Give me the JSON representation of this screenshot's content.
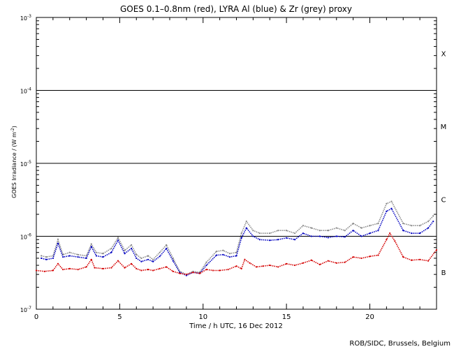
{
  "chart_data": {
    "type": "scatter",
    "title": "GOES 0.1–0.8nm (red), LYRA Al (blue) & Zr (grey) proxy",
    "xlabel": "Time / h UTC, 16 Dec 2012",
    "ylabel_main": "GOES Irradiance / (W m",
    "ylabel_exp": "-2",
    "ylabel_close": ")",
    "xlim": [
      0,
      24
    ],
    "ylim": [
      1e-07,
      0.001
    ],
    "yscale": "log",
    "x_ticks": [
      0,
      5,
      10,
      15,
      20
    ],
    "x_tick_labels": [
      "0",
      "5",
      "10",
      "15",
      "20"
    ],
    "y_ticks": [
      1e-07,
      1e-06,
      1e-05,
      0.0001,
      0.001
    ],
    "y_tick_labels": [
      {
        "base": "10",
        "exp": "-7"
      },
      {
        "base": "10",
        "exp": "-6"
      },
      {
        "base": "10",
        "exp": "-5"
      },
      {
        "base": "10",
        "exp": "-4"
      },
      {
        "base": "10",
        "exp": "-3"
      }
    ],
    "threshold_lines": [
      1e-06,
      1e-05,
      0.0001
    ],
    "flare_classes": [
      {
        "label": "X",
        "y": 0.00032
      },
      {
        "label": "M",
        "y": 3.2e-05
      },
      {
        "label": "C",
        "y": 3.2e-06
      },
      {
        "label": "B",
        "y": 3.2e-07
      }
    ],
    "credit": "ROB/SIDC, Brussels, Belgium",
    "series": [
      {
        "color": "#d40000",
        "x": [
          0,
          0.5,
          1,
          1.3,
          1.6,
          2,
          2.5,
          3,
          3.3,
          3.5,
          4,
          4.5,
          4.9,
          5.3,
          5.7,
          6,
          6.3,
          6.7,
          7,
          7.4,
          7.8,
          8.2,
          8.6,
          9,
          9.4,
          9.8,
          10.2,
          10.6,
          11,
          11.5,
          12,
          12.3,
          12.5,
          12.8,
          13.2,
          13.6,
          14,
          14.5,
          15,
          15.5,
          16,
          16.5,
          17,
          17.5,
          18,
          18.5,
          19,
          19.5,
          20,
          20.5,
          21,
          21.2,
          21.5,
          22,
          22.5,
          23,
          23.5,
          24
        ],
        "y": [
          3.4e-07,
          3.3e-07,
          3.4e-07,
          4.2e-07,
          3.5e-07,
          3.6e-07,
          3.5e-07,
          3.8e-07,
          4.8e-07,
          3.7e-07,
          3.6e-07,
          3.7e-07,
          4.6e-07,
          3.7e-07,
          4.2e-07,
          3.6e-07,
          3.4e-07,
          3.5e-07,
          3.4e-07,
          3.6e-07,
          3.8e-07,
          3.3e-07,
          3.1e-07,
          3e-07,
          3.2e-07,
          3.1e-07,
          3.5e-07,
          3.4e-07,
          3.4e-07,
          3.5e-07,
          3.9e-07,
          3.6e-07,
          4.8e-07,
          4.3e-07,
          3.8e-07,
          3.9e-07,
          4e-07,
          3.8e-07,
          4.2e-07,
          4e-07,
          4.3e-07,
          4.7e-07,
          4.1e-07,
          4.6e-07,
          4.3e-07,
          4.4e-07,
          5.2e-07,
          5e-07,
          5.3e-07,
          5.5e-07,
          9e-07,
          1.1e-06,
          8.6e-07,
          5.2e-07,
          4.7e-07,
          4.8e-07,
          4.6e-07,
          6.5e-07
        ]
      },
      {
        "color": "#0000c0",
        "x": [
          0.3,
          0.6,
          1,
          1.3,
          1.6,
          2,
          2.5,
          3,
          3.3,
          3.6,
          4,
          4.5,
          4.9,
          5.3,
          5.7,
          6,
          6.3,
          6.7,
          7,
          7.4,
          7.8,
          8.2,
          8.6,
          9,
          9.4,
          9.8,
          10.2,
          10.8,
          11.2,
          11.6,
          12,
          12.3,
          12.6,
          13,
          13.4,
          14,
          14.5,
          15,
          15.5,
          16,
          16.5,
          17,
          17.5,
          18,
          18.5,
          19,
          19.5,
          20,
          20.5,
          21,
          21.3,
          22,
          22.5,
          23,
          23.5,
          23.8
        ],
        "y": [
          5e-07,
          4.8e-07,
          5e-07,
          8e-07,
          5.2e-07,
          5.4e-07,
          5.2e-07,
          5e-07,
          7.2e-07,
          5.4e-07,
          5.2e-07,
          6e-07,
          8.8e-07,
          5.8e-07,
          6.8e-07,
          5e-07,
          4.5e-07,
          4.8e-07,
          4.5e-07,
          5.3e-07,
          6.8e-07,
          4.6e-07,
          3.2e-07,
          2.9e-07,
          3.2e-07,
          3.1e-07,
          4e-07,
          5.5e-07,
          5.6e-07,
          5.2e-07,
          5.4e-07,
          9.5e-07,
          1.3e-06,
          1e-06,
          9e-07,
          8.8e-07,
          9e-07,
          9.5e-07,
          9e-07,
          1.1e-06,
          1e-06,
          1e-06,
          9.6e-07,
          1e-06,
          9.8e-07,
          1.2e-06,
          1e-06,
          1.1e-06,
          1.2e-06,
          2.2e-06,
          2.4e-06,
          1.2e-06,
          1.1e-06,
          1.1e-06,
          1.3e-06,
          1.6e-06
        ]
      },
      {
        "color": "#888888",
        "x": [
          0.3,
          0.6,
          1,
          1.3,
          1.6,
          2,
          2.5,
          3,
          3.3,
          3.6,
          4,
          4.5,
          4.9,
          5.3,
          5.7,
          6,
          6.3,
          6.7,
          7,
          7.4,
          7.8,
          8.2,
          8.6,
          9,
          9.4,
          9.8,
          10.2,
          10.8,
          11.2,
          11.6,
          12,
          12.3,
          12.6,
          13,
          13.4,
          14,
          14.5,
          15,
          15.5,
          16,
          16.5,
          17,
          17.5,
          18,
          18.5,
          19,
          19.5,
          20,
          20.5,
          21,
          21.3,
          22,
          22.5,
          23,
          23.5,
          23.8
        ],
        "y": [
          5.4e-07,
          5.2e-07,
          5.4e-07,
          9e-07,
          5.6e-07,
          6e-07,
          5.6e-07,
          5.4e-07,
          7.8e-07,
          6e-07,
          5.8e-07,
          6.8e-07,
          9.6e-07,
          6.4e-07,
          7.6e-07,
          5.6e-07,
          5e-07,
          5.4e-07,
          4.8e-07,
          6e-07,
          7.6e-07,
          5e-07,
          3.3e-07,
          3e-07,
          3.3e-07,
          3.2e-07,
          4.4e-07,
          6.2e-07,
          6.4e-07,
          5.8e-07,
          6e-07,
          1.1e-06,
          1.6e-06,
          1.2e-06,
          1.1e-06,
          1.1e-06,
          1.2e-06,
          1.2e-06,
          1.1e-06,
          1.4e-06,
          1.3e-06,
          1.2e-06,
          1.2e-06,
          1.3e-06,
          1.2e-06,
          1.5e-06,
          1.3e-06,
          1.4e-06,
          1.5e-06,
          2.8e-06,
          3e-06,
          1.5e-06,
          1.4e-06,
          1.4e-06,
          1.6e-06,
          1.9e-06
        ]
      }
    ]
  }
}
